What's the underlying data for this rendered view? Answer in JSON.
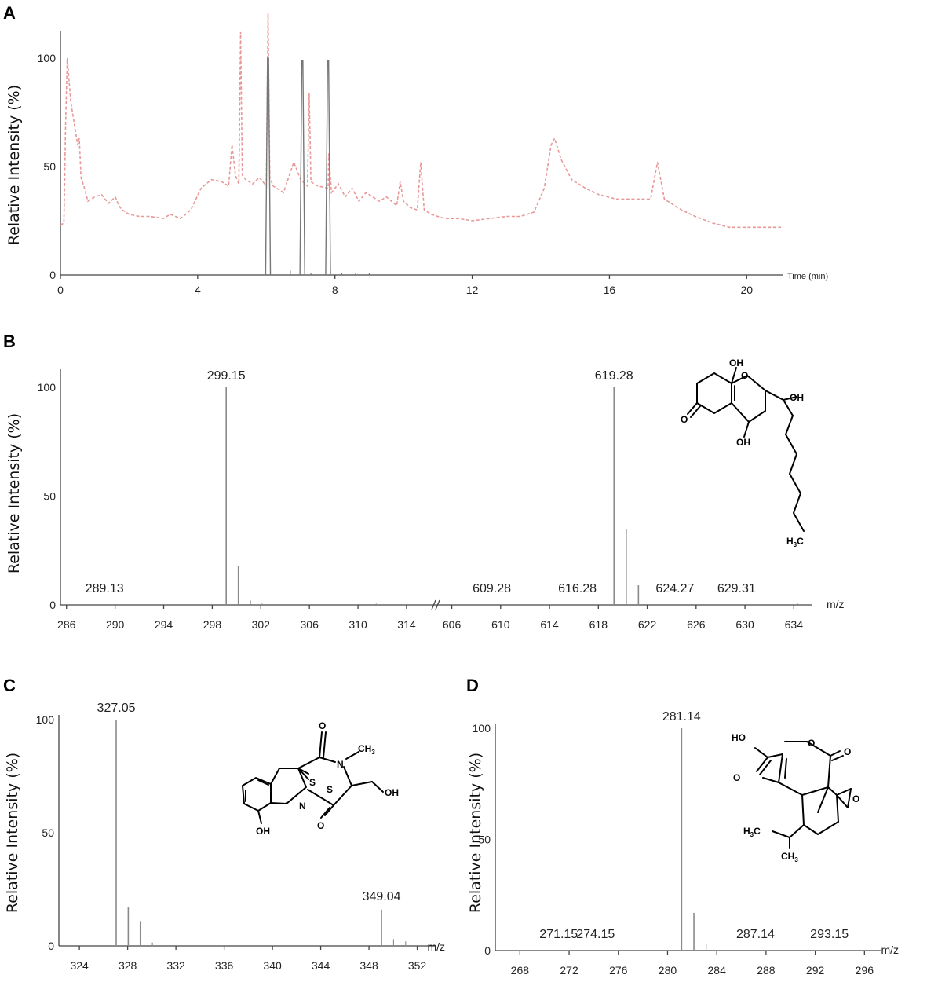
{
  "chart_data": [
    {
      "panel": "A",
      "type": "line",
      "ylabel": "Relative Intensity (%)",
      "x_unit_label": "Time (min)",
      "xlim": [
        0,
        21
      ],
      "ylim": [
        0,
        100
      ],
      "xticks": [
        0,
        4,
        8,
        12,
        16,
        20
      ],
      "yticks": [
        0,
        50,
        100
      ],
      "series": [
        {
          "style": "dashed",
          "color": "#e89898",
          "x": [
            0.0,
            0.1,
            0.15,
            0.2,
            0.3,
            0.4,
            0.5,
            0.55,
            0.6,
            0.7,
            0.8,
            1.0,
            1.2,
            1.4,
            1.6,
            1.7,
            1.8,
            2.0,
            2.3,
            2.6,
            3.0,
            3.2,
            3.5,
            3.8,
            4.1,
            4.4,
            4.7,
            4.9,
            5.0,
            5.1,
            5.2,
            5.25,
            5.3,
            5.4,
            5.6,
            5.8,
            6.0,
            6.05,
            6.1,
            6.2,
            6.5,
            6.8,
            7.0,
            7.2,
            7.25,
            7.3,
            7.5,
            7.8,
            7.82,
            7.9,
            8.1,
            8.3,
            8.5,
            8.7,
            8.9,
            9.1,
            9.3,
            9.5,
            9.8,
            9.9,
            10.0,
            10.2,
            10.4,
            10.5,
            10.6,
            10.8,
            11.0,
            11.2,
            11.6,
            12.0,
            12.5,
            13.0,
            13.4,
            13.8,
            14.1,
            14.3,
            14.4,
            14.6,
            14.9,
            15.3,
            15.7,
            16.2,
            16.8,
            17.2,
            17.4,
            17.6,
            17.8,
            18.1,
            18.5,
            19.0,
            19.5,
            20.0,
            20.5,
            21.0
          ],
          "y": [
            23,
            24,
            70,
            100,
            80,
            70,
            60,
            63,
            45,
            40,
            34,
            36,
            37,
            33,
            36,
            32,
            30,
            28,
            27,
            27,
            26,
            28,
            26,
            30,
            40,
            44,
            43,
            41,
            60,
            46,
            42,
            112,
            46,
            44,
            42,
            45,
            41,
            121,
            45,
            41,
            38,
            52,
            44,
            41,
            84,
            43,
            41,
            40,
            56,
            38,
            42,
            36,
            40,
            34,
            38,
            36,
            34,
            36,
            32,
            43,
            34,
            31,
            30,
            52,
            30,
            28,
            27,
            26,
            26,
            25,
            26,
            27,
            27,
            29,
            40,
            60,
            63,
            53,
            44,
            40,
            37,
            35,
            35,
            35,
            52,
            35,
            33,
            30,
            27,
            24,
            22,
            22,
            22,
            22
          ]
        },
        {
          "style": "solid",
          "color": "#777777",
          "peaks": [
            {
              "x": 6.05,
              "y": 100
            },
            {
              "x": 7.05,
              "y": 99
            },
            {
              "x": 7.8,
              "y": 99
            }
          ],
          "minor": [
            {
              "x": 6.7,
              "y": 2
            },
            {
              "x": 7.3,
              "y": 1
            },
            {
              "x": 8.2,
              "y": 1
            },
            {
              "x": 8.6,
              "y": 1
            },
            {
              "x": 9.0,
              "y": 1
            }
          ]
        }
      ]
    },
    {
      "panel": "B",
      "type": "bar",
      "ylabel": "Relative Intensity (%)",
      "x_unit_label": "m/z",
      "ylim": [
        0,
        100
      ],
      "yticks": [
        0,
        50,
        100
      ],
      "axis_break": true,
      "segments": [
        {
          "xlim": [
            285.5,
            316.2
          ],
          "xticks": [
            286,
            290,
            294,
            298,
            302,
            306,
            310,
            314
          ]
        },
        {
          "xlim": [
            605.0,
            635.2
          ],
          "xticks": [
            606,
            610,
            614,
            618,
            622,
            626,
            630,
            634
          ]
        }
      ],
      "peaks": [
        {
          "mz": 299.15,
          "y": 100
        },
        {
          "mz": 300.15,
          "y": 18
        },
        {
          "mz": 301.15,
          "y": 2
        },
        {
          "mz": 302.1,
          "y": 0.6
        },
        {
          "mz": 310.1,
          "y": 0.6
        },
        {
          "mz": 311.5,
          "y": 0.6
        },
        {
          "mz": 619.28,
          "y": 100
        },
        {
          "mz": 620.28,
          "y": 35
        },
        {
          "mz": 621.28,
          "y": 9
        },
        {
          "mz": 634.3,
          "y": 0.8
        }
      ],
      "labels": [
        {
          "text": "299.15",
          "mz": 299.15,
          "pos": "top"
        },
        {
          "text": "619.28",
          "mz": 619.28,
          "pos": "top"
        },
        {
          "text": "289.13",
          "mz": 289.13,
          "pos": "low"
        },
        {
          "text": "609.28",
          "mz": 609.28,
          "pos": "low"
        },
        {
          "text": "616.28",
          "mz": 616.28,
          "pos": "low"
        },
        {
          "text": "624.27",
          "mz": 624.27,
          "pos": "low"
        },
        {
          "text": "629.31",
          "mz": 629.31,
          "pos": "low"
        }
      ]
    },
    {
      "panel": "C",
      "type": "bar",
      "ylabel": "Relative Intensity (%)",
      "x_unit_label": "m/z",
      "xlim": [
        322.3,
        353.2
      ],
      "ylim": [
        0,
        100
      ],
      "xticks": [
        324,
        328,
        332,
        336,
        340,
        344,
        348,
        352
      ],
      "yticks": [
        0,
        50,
        100
      ],
      "peaks": [
        {
          "mz": 327.05,
          "y": 100
        },
        {
          "mz": 328.05,
          "y": 17
        },
        {
          "mz": 329.05,
          "y": 11
        },
        {
          "mz": 330.05,
          "y": 1.5
        },
        {
          "mz": 349.04,
          "y": 16
        },
        {
          "mz": 350.04,
          "y": 3
        },
        {
          "mz": 351.04,
          "y": 2
        }
      ],
      "labels": [
        {
          "text": "327.05",
          "mz": 327.05,
          "pos": "top"
        },
        {
          "text": "349.04",
          "mz": 349.04,
          "pos": "mid"
        }
      ]
    },
    {
      "panel": "D",
      "type": "bar",
      "ylabel": "Relative Intensity (%)",
      "x_unit_label": "m/z",
      "xlim": [
        266.0,
        297.0
      ],
      "ylim": [
        0,
        100
      ],
      "xticks": [
        268,
        272,
        276,
        280,
        284,
        288,
        292,
        296
      ],
      "yticks": [
        0,
        50,
        100
      ],
      "peaks": [
        {
          "mz": 281.14,
          "y": 100
        },
        {
          "mz": 282.14,
          "y": 17
        },
        {
          "mz": 283.14,
          "y": 3
        }
      ],
      "labels": [
        {
          "text": "281.14",
          "mz": 281.14,
          "pos": "top"
        },
        {
          "text": "271.15",
          "mz": 271.15,
          "pos": "low"
        },
        {
          "text": "274.15",
          "mz": 274.15,
          "pos": "low"
        },
        {
          "text": "287.14",
          "mz": 287.14,
          "pos": "low"
        },
        {
          "text": "293.15",
          "mz": 293.15,
          "pos": "low"
        }
      ]
    }
  ],
  "panel_labels": [
    "A",
    "B",
    "C",
    "D"
  ],
  "structure_labels": {
    "b": {
      "oh1": "OH",
      "o_ring": "O",
      "oh2": "OH",
      "ketone_o": "O",
      "oh3": "OH",
      "h3c": "H",
      "h3c_sub": "3",
      "h3c_c": "C"
    },
    "c": {
      "o_top": "O",
      "n_right": "N",
      "ch3": "CH",
      "ch3_sub": "3",
      "s1": "S",
      "s2": "S",
      "n_left": "N",
      "oh_side": "OH",
      "o_bottom": "O",
      "oh_ring": "OH"
    },
    "d": {
      "ho": "HO",
      "o_acid": "O",
      "o_ring": "O",
      "o_lactone": "O",
      "o_epox": "O",
      "h3c": "H",
      "h3c_sub": "3",
      "h3c_c": "C",
      "ch3": "CH",
      "ch3_sub": "3"
    }
  }
}
